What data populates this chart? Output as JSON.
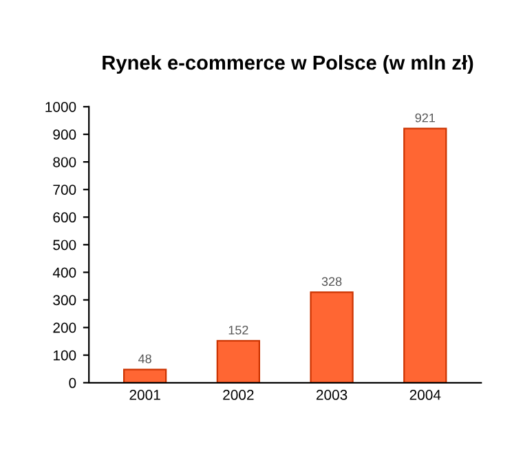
{
  "chart_data": {
    "type": "bar",
    "title": "Rynek e-commerce w Polsce (w mln zł)",
    "categories": [
      "2001",
      "2002",
      "2003",
      "2004"
    ],
    "values": [
      48,
      152,
      328,
      921
    ],
    "color": "#ff6633",
    "ylim": [
      0,
      1000
    ],
    "yticks": [
      0,
      100,
      200,
      300,
      400,
      500,
      600,
      700,
      800,
      900,
      1000
    ],
    "data_labels": true
  }
}
